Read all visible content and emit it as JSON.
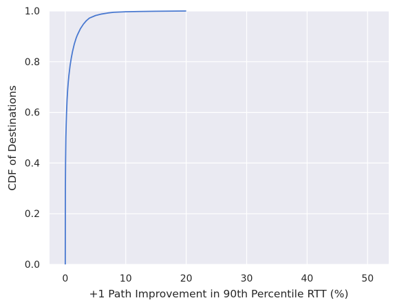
{
  "chart_data": {
    "type": "line",
    "title": "",
    "xlabel": "+1 Path Improvement in 90th Percentile RTT (%)",
    "ylabel": "CDF of Destinations",
    "xlim": [
      -2.6,
      53.5
    ],
    "ylim": [
      0,
      1
    ],
    "xticks": [
      0,
      10,
      20,
      30,
      40,
      50
    ],
    "yticks": [
      0.0,
      0.2,
      0.4,
      0.6,
      0.8,
      1.0
    ],
    "xtick_labels": [
      "0",
      "10",
      "20",
      "30",
      "40",
      "50"
    ],
    "ytick_labels": [
      "0.0",
      "0.2",
      "0.4",
      "0.6",
      "0.8",
      "1.0"
    ],
    "grid": true,
    "background_color": "#eaeaf2",
    "grid_color": "#ffffff",
    "series": [
      {
        "color": "#4878d0",
        "x": [
          0,
          0.02,
          0.05,
          0.1,
          0.15,
          0.2,
          0.3,
          0.4,
          0.5,
          0.6,
          0.8,
          1.0,
          1.2,
          1.5,
          1.8,
          2.0,
          2.5,
          3.0,
          3.5,
          4.0,
          5.0,
          6.0,
          7.0,
          8.0,
          10.0,
          12.0,
          15.0,
          20.0
        ],
        "y": [
          0.0,
          0.3,
          0.4,
          0.5,
          0.55,
          0.59,
          0.65,
          0.69,
          0.72,
          0.745,
          0.785,
          0.815,
          0.84,
          0.87,
          0.893,
          0.905,
          0.93,
          0.948,
          0.962,
          0.972,
          0.982,
          0.988,
          0.992,
          0.995,
          0.997,
          0.998,
          0.999,
          1.0
        ]
      }
    ]
  }
}
